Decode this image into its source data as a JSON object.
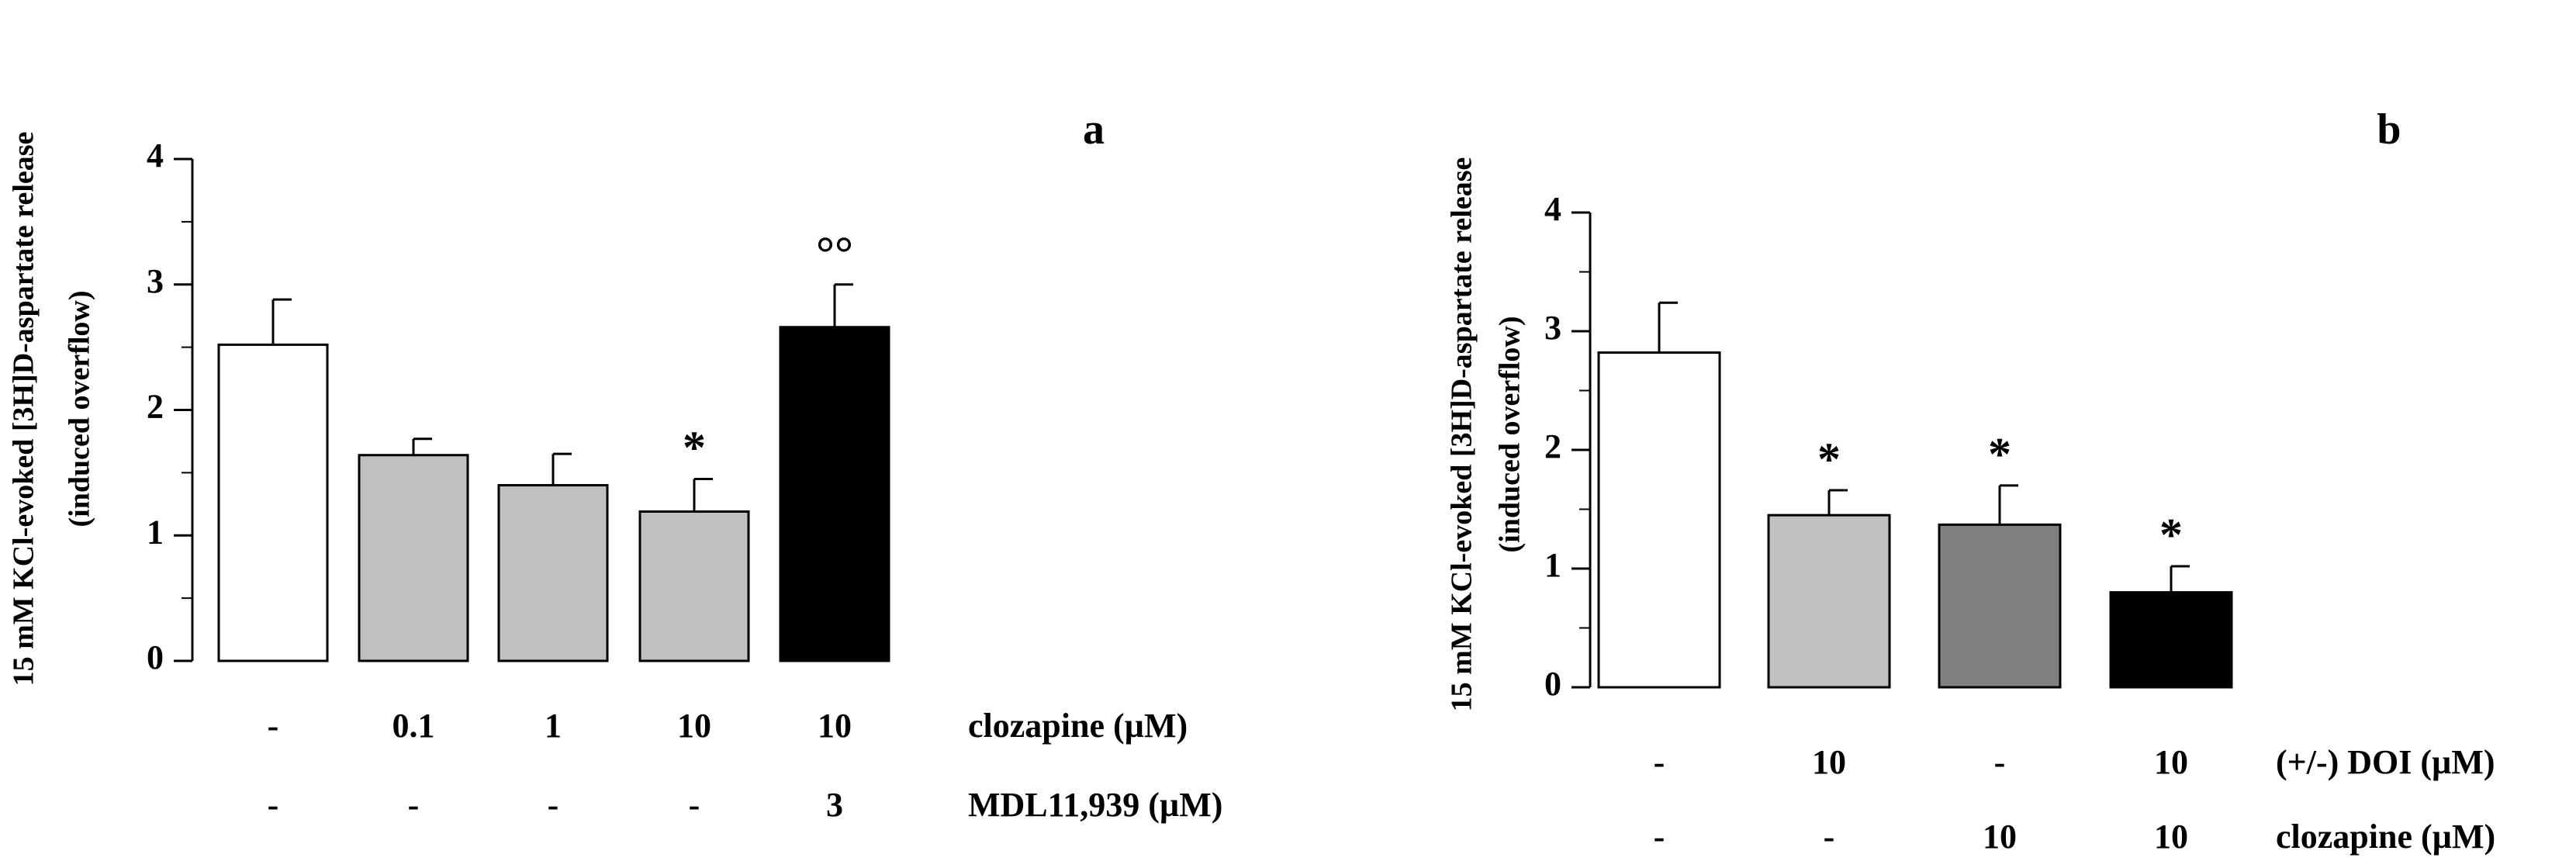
{
  "chart_data": [
    {
      "type": "bar",
      "panel_label": "a",
      "ylabel_line1": "15 mM KCl-evoked [3H]D-aspartate release",
      "ylabel_line2": "(induced overflow)",
      "ylim": [
        0,
        4
      ],
      "yticks": [
        0,
        1,
        2,
        3,
        4
      ],
      "values": [
        2.52,
        1.64,
        1.4,
        1.19,
        2.66
      ],
      "errors": [
        0.36,
        0.13,
        0.25,
        0.26,
        0.34
      ],
      "fills": [
        "#ffffff",
        "#c0c0c0",
        "#c0c0c0",
        "#c0c0c0",
        "#000000"
      ],
      "markers": [
        "",
        "",
        "",
        "*",
        "°°"
      ],
      "rows": [
        {
          "label": "clozapine (µM)",
          "values": [
            "-",
            "0.1",
            "1",
            "10",
            "10"
          ]
        },
        {
          "label": "MDL11,939 (µM)",
          "values": [
            "-",
            "-",
            "-",
            "-",
            "3"
          ]
        }
      ]
    },
    {
      "type": "bar",
      "panel_label": "b",
      "ylabel_line1": "15 mM KCl-evoked [3H]D-aspartate release",
      "ylabel_line2": "(induced overflow)",
      "ylim": [
        0,
        4
      ],
      "yticks": [
        0,
        1,
        2,
        3,
        4
      ],
      "values": [
        2.82,
        1.45,
        1.37,
        0.8
      ],
      "errors": [
        0.42,
        0.21,
        0.33,
        0.22
      ],
      "fills": [
        "#ffffff",
        "#c0c0c0",
        "#808080",
        "#000000"
      ],
      "markers": [
        "",
        "*",
        "*",
        "*"
      ],
      "rows": [
        {
          "label": "(+/-) DOI (µM)",
          "values": [
            "-",
            "10",
            "-",
            "10"
          ]
        },
        {
          "label": "clozapine (µM)",
          "values": [
            "-",
            "-",
            "10",
            "10"
          ]
        }
      ]
    }
  ]
}
